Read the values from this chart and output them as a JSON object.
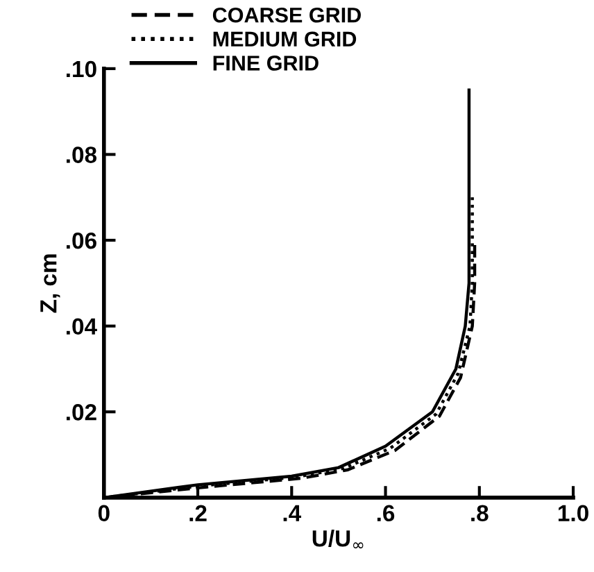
{
  "chart_data": {
    "type": "line",
    "xlabel": "U/U$_{∞}$",
    "ylabel": "Z, cm",
    "xlim": [
      0,
      1.0
    ],
    "ylim": [
      0,
      0.1
    ],
    "xticks": [
      0,
      {
        "value": 0.2,
        "label": ".2"
      },
      {
        "value": 0.4,
        "label": ".4"
      },
      {
        "value": 0.6,
        "label": ".6"
      },
      {
        "value": 0.8,
        "label": ".8"
      },
      {
        "value": 1.0,
        "label": "1.0"
      }
    ],
    "yticks": [
      {
        "value": 0.02,
        "label": ".02"
      },
      {
        "value": 0.04,
        "label": ".04"
      },
      {
        "value": 0.06,
        "label": ".06"
      },
      {
        "value": 0.08,
        "label": ".08"
      },
      {
        "value": 0.1,
        "label": ".10"
      }
    ],
    "legend": "top",
    "grid": false,
    "series": [
      {
        "name": "COARSE GRID",
        "color": "#000000",
        "line_style": "dashed",
        "x": [
          0,
          0.22,
          0.42,
          0.52,
          0.62,
          0.715,
          0.76,
          0.785,
          0.79,
          0.79
        ],
        "values": [
          0,
          0.0025,
          0.0045,
          0.0065,
          0.011,
          0.019,
          0.028,
          0.04,
          0.05,
          0.06
        ]
      },
      {
        "name": "MEDIUM GRID",
        "color": "#000000",
        "line_style": "dotted",
        "x": [
          0,
          0.21,
          0.41,
          0.51,
          0.61,
          0.708,
          0.755,
          0.78,
          0.785,
          0.785
        ],
        "values": [
          0,
          0.0028,
          0.0048,
          0.0068,
          0.0115,
          0.0195,
          0.029,
          0.04,
          0.05,
          0.07
        ]
      },
      {
        "name": "FINE GRID",
        "color": "#000000",
        "line_style": "solid",
        "x": [
          0,
          0.2,
          0.4,
          0.5,
          0.6,
          0.7,
          0.75,
          0.77,
          0.778,
          0.778
        ],
        "values": [
          0,
          0.003,
          0.005,
          0.007,
          0.012,
          0.02,
          0.03,
          0.04,
          0.05,
          0.095
        ]
      }
    ]
  }
}
